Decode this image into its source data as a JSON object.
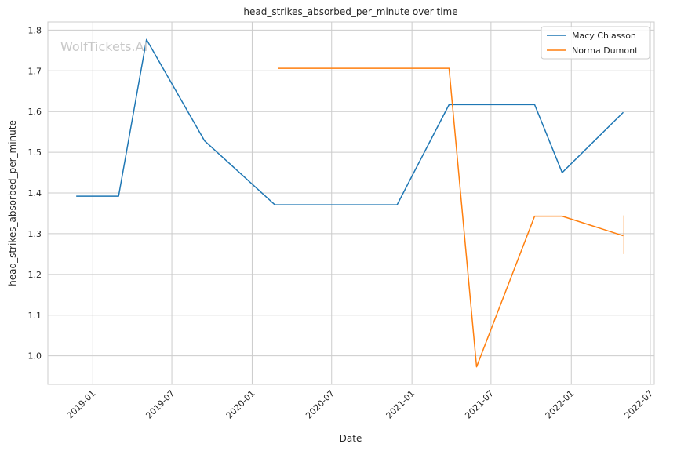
{
  "chart_data": {
    "type": "line",
    "title": "head_strikes_absorbed_per_minute over time",
    "xlabel": "Date",
    "ylabel": "head_strikes_absorbed_per_minute",
    "watermark": "WolfTickets.AI",
    "x_range": [
      "2018-09-20",
      "2022-07-10"
    ],
    "ylim": [
      0.93,
      1.82
    ],
    "x_ticks": [
      "2019-01",
      "2019-07",
      "2020-01",
      "2020-07",
      "2021-01",
      "2021-07",
      "2022-01",
      "2022-07"
    ],
    "y_ticks": [
      1.0,
      1.1,
      1.2,
      1.3,
      1.4,
      1.5,
      1.6,
      1.7,
      1.8
    ],
    "y_tick_labels": [
      "1.0",
      "1.1",
      "1.2",
      "1.3",
      "1.4",
      "1.5",
      "1.6",
      "1.7",
      "1.8"
    ],
    "grid": true,
    "legend_position": "top-right",
    "series": [
      {
        "name": "Macy Chiasson",
        "color": "#1f77b4",
        "points": [
          {
            "x": "2018-11-24",
            "y": 1.392
          },
          {
            "x": "2019-03-01",
            "y": 1.392
          },
          {
            "x": "2019-05-04",
            "y": 1.777
          },
          {
            "x": "2019-09-14",
            "y": 1.528
          },
          {
            "x": "2020-02-22",
            "y": 1.371
          },
          {
            "x": "2020-11-28",
            "y": 1.371
          },
          {
            "x": "2021-03-27",
            "y": 1.617
          },
          {
            "x": "2021-10-09",
            "y": 1.617
          },
          {
            "x": "2021-12-11",
            "y": 1.45
          },
          {
            "x": "2022-04-30",
            "y": 1.598
          }
        ]
      },
      {
        "name": "Norma Dumont",
        "color": "#ff7f0e",
        "points": [
          {
            "x": "2020-02-29",
            "y": 1.706
          },
          {
            "x": "2021-03-27",
            "y": 1.706
          },
          {
            "x": "2021-05-29",
            "y": 0.973
          },
          {
            "x": "2021-10-09",
            "y": 1.343
          },
          {
            "x": "2021-12-11",
            "y": 1.343
          },
          {
            "x": "2022-04-30",
            "y": 1.295
          }
        ],
        "error_band": {
          "x": "2022-04-30",
          "low": 1.25,
          "high": 1.345
        }
      }
    ]
  }
}
